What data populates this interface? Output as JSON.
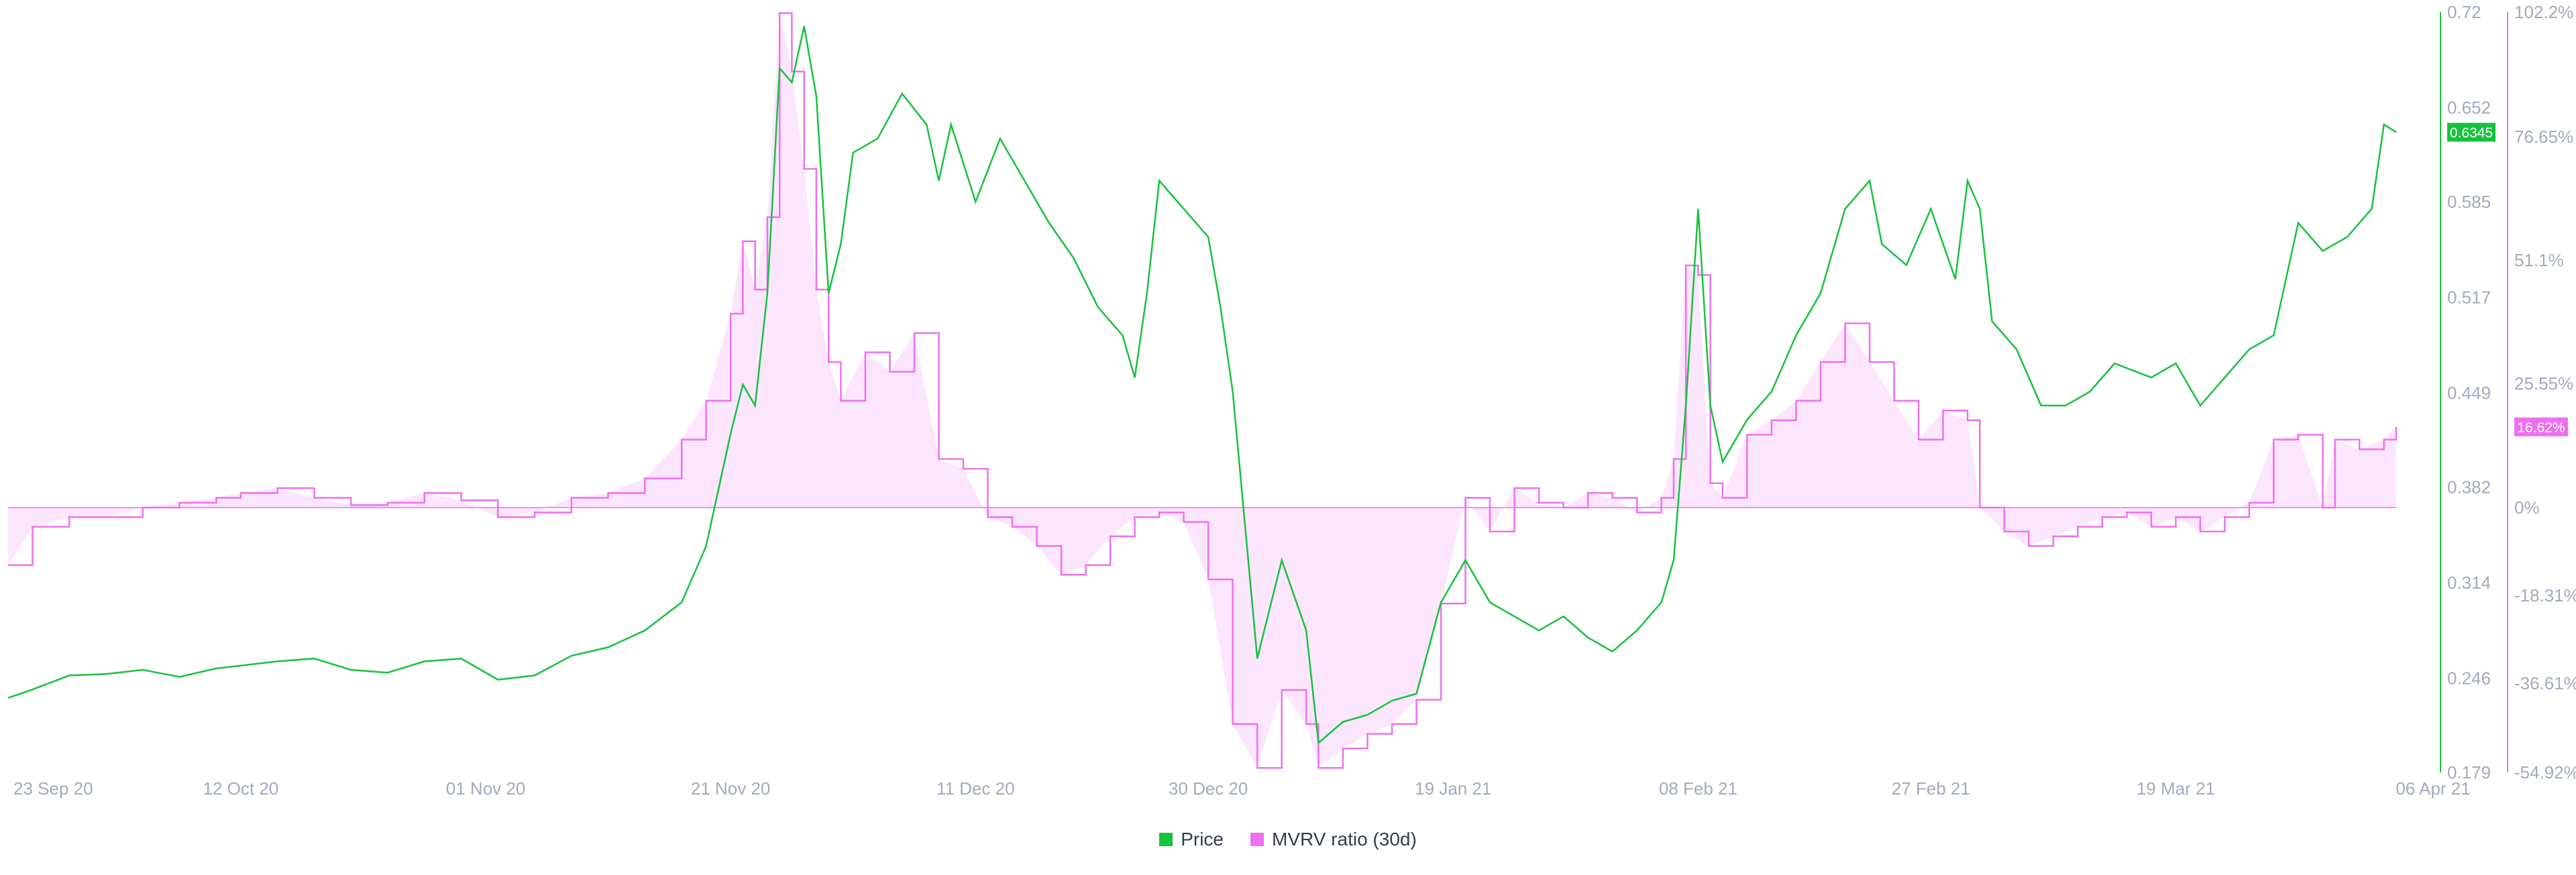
{
  "colors": {
    "price": "#16c23c",
    "mvrv": "#ef6ff0",
    "mvrv_fill": "#fce6fd",
    "axis_text": "#a3a9c0",
    "zero_line": "#ef6ff0"
  },
  "legend": {
    "price_label": "Price",
    "mvrv_label": "MVRV ratio (30d)"
  },
  "badges": {
    "price_value": "0.6345",
    "mvrv_value": "16.62%"
  },
  "chart_data": {
    "type": "line",
    "x_ticks": [
      "23 Sep 20",
      "12 Oct 20",
      "01 Nov 20",
      "21 Nov 20",
      "11 Dec 20",
      "30 Dec 20",
      "19 Jan 21",
      "08 Feb 21",
      "27 Feb 21",
      "19 Mar 21",
      "06 Apr 21"
    ],
    "x_range": [
      "2020-09-23",
      "2021-04-06"
    ],
    "y_left": {
      "label": "",
      "ticks": [
        "0.72",
        "0.652",
        "0.585",
        "0.517",
        "0.449",
        "0.382",
        "0.314",
        "0.246",
        "0.179"
      ],
      "range": [
        0.179,
        0.72
      ]
    },
    "y_right": {
      "label": "",
      "ticks": [
        "102.2%",
        "76.65%",
        "51.1%",
        "25.55%",
        "0%",
        "-18.31%",
        "-36.61%",
        "-54.92%"
      ]
    },
    "series": [
      {
        "name": "Price",
        "axis": "left",
        "points": [
          [
            "2020-09-23",
            0.232
          ],
          [
            "2020-09-25",
            0.238
          ],
          [
            "2020-09-28",
            0.248
          ],
          [
            "2020-10-01",
            0.249
          ],
          [
            "2020-10-04",
            0.252
          ],
          [
            "2020-10-07",
            0.247
          ],
          [
            "2020-10-10",
            0.253
          ],
          [
            "2020-10-12",
            0.255
          ],
          [
            "2020-10-15",
            0.258
          ],
          [
            "2020-10-18",
            0.26
          ],
          [
            "2020-10-21",
            0.252
          ],
          [
            "2020-10-24",
            0.25
          ],
          [
            "2020-10-27",
            0.258
          ],
          [
            "2020-10-30",
            0.26
          ],
          [
            "2020-11-02",
            0.245
          ],
          [
            "2020-11-05",
            0.248
          ],
          [
            "2020-11-08",
            0.262
          ],
          [
            "2020-11-11",
            0.268
          ],
          [
            "2020-11-14",
            0.28
          ],
          [
            "2020-11-17",
            0.3
          ],
          [
            "2020-11-19",
            0.34
          ],
          [
            "2020-11-21",
            0.42
          ],
          [
            "2020-11-22",
            0.455
          ],
          [
            "2020-11-23",
            0.44
          ],
          [
            "2020-11-24",
            0.52
          ],
          [
            "2020-11-25",
            0.68
          ],
          [
            "2020-11-26",
            0.67
          ],
          [
            "2020-11-27",
            0.71
          ],
          [
            "2020-11-28",
            0.66
          ],
          [
            "2020-11-29",
            0.52
          ],
          [
            "2020-11-30",
            0.555
          ],
          [
            "2020-12-01",
            0.62
          ],
          [
            "2020-12-03",
            0.63
          ],
          [
            "2020-12-05",
            0.662
          ],
          [
            "2020-12-07",
            0.64
          ],
          [
            "2020-12-08",
            0.6
          ],
          [
            "2020-12-09",
            0.64
          ],
          [
            "2020-12-11",
            0.585
          ],
          [
            "2020-12-13",
            0.63
          ],
          [
            "2020-12-15",
            0.6
          ],
          [
            "2020-12-17",
            0.57
          ],
          [
            "2020-12-19",
            0.545
          ],
          [
            "2020-12-21",
            0.51
          ],
          [
            "2020-12-23",
            0.49
          ],
          [
            "2020-12-24",
            0.46
          ],
          [
            "2020-12-25",
            0.52
          ],
          [
            "2020-12-26",
            0.6
          ],
          [
            "2020-12-28",
            0.58
          ],
          [
            "2020-12-30",
            0.56
          ],
          [
            "2020-12-31",
            0.51
          ],
          [
            "2021-01-01",
            0.45
          ],
          [
            "2021-01-03",
            0.26
          ],
          [
            "2021-01-05",
            0.33
          ],
          [
            "2021-01-07",
            0.28
          ],
          [
            "2021-01-08",
            0.2
          ],
          [
            "2021-01-10",
            0.215
          ],
          [
            "2021-01-12",
            0.22
          ],
          [
            "2021-01-14",
            0.23
          ],
          [
            "2021-01-16",
            0.235
          ],
          [
            "2021-01-18",
            0.3
          ],
          [
            "2021-01-20",
            0.33
          ],
          [
            "2021-01-22",
            0.3
          ],
          [
            "2021-01-24",
            0.29
          ],
          [
            "2021-01-26",
            0.28
          ],
          [
            "2021-01-28",
            0.29
          ],
          [
            "2021-01-30",
            0.275
          ],
          [
            "2021-02-01",
            0.265
          ],
          [
            "2021-02-03",
            0.28
          ],
          [
            "2021-02-05",
            0.3
          ],
          [
            "2021-02-06",
            0.33
          ],
          [
            "2021-02-07",
            0.44
          ],
          [
            "2021-02-08",
            0.58
          ],
          [
            "2021-02-09",
            0.44
          ],
          [
            "2021-02-10",
            0.4
          ],
          [
            "2021-02-12",
            0.43
          ],
          [
            "2021-02-14",
            0.45
          ],
          [
            "2021-02-16",
            0.49
          ],
          [
            "2021-02-18",
            0.52
          ],
          [
            "2021-02-20",
            0.58
          ],
          [
            "2021-02-22",
            0.6
          ],
          [
            "2021-02-23",
            0.555
          ],
          [
            "2021-02-25",
            0.54
          ],
          [
            "2021-02-27",
            0.58
          ],
          [
            "2021-03-01",
            0.53
          ],
          [
            "2021-03-02",
            0.6
          ],
          [
            "2021-03-03",
            0.58
          ],
          [
            "2021-03-04",
            0.5
          ],
          [
            "2021-03-06",
            0.48
          ],
          [
            "2021-03-08",
            0.44
          ],
          [
            "2021-03-10",
            0.44
          ],
          [
            "2021-03-12",
            0.45
          ],
          [
            "2021-03-14",
            0.47
          ],
          [
            "2021-03-17",
            0.46
          ],
          [
            "2021-03-19",
            0.47
          ],
          [
            "2021-03-21",
            0.44
          ],
          [
            "2021-03-23",
            0.46
          ],
          [
            "2021-03-25",
            0.48
          ],
          [
            "2021-03-27",
            0.49
          ],
          [
            "2021-03-29",
            0.57
          ],
          [
            "2021-03-31",
            0.55
          ],
          [
            "2021-04-02",
            0.56
          ],
          [
            "2021-04-03",
            0.57
          ],
          [
            "2021-04-04",
            0.58
          ],
          [
            "2021-04-05",
            0.64
          ],
          [
            "2021-04-06",
            0.6345
          ]
        ]
      },
      {
        "name": "MVRV ratio (30d)",
        "axis": "right",
        "points": [
          [
            "2020-09-23",
            -12.0
          ],
          [
            "2020-09-25",
            -4.0
          ],
          [
            "2020-09-28",
            -2.0
          ],
          [
            "2020-10-01",
            -2.0
          ],
          [
            "2020-10-04",
            0.0
          ],
          [
            "2020-10-07",
            1.0
          ],
          [
            "2020-10-10",
            2.0
          ],
          [
            "2020-10-12",
            3.0
          ],
          [
            "2020-10-15",
            4.0
          ],
          [
            "2020-10-18",
            2.0
          ],
          [
            "2020-10-21",
            0.5
          ],
          [
            "2020-10-24",
            1.0
          ],
          [
            "2020-10-27",
            3.0
          ],
          [
            "2020-10-30",
            1.5
          ],
          [
            "2020-11-02",
            -2.0
          ],
          [
            "2020-11-05",
            -1.0
          ],
          [
            "2020-11-08",
            2.0
          ],
          [
            "2020-11-11",
            3.0
          ],
          [
            "2020-11-14",
            6.0
          ],
          [
            "2020-11-17",
            14.0
          ],
          [
            "2020-11-19",
            22.0
          ],
          [
            "2020-11-21",
            40.0
          ],
          [
            "2020-11-22",
            55.0
          ],
          [
            "2020-11-23",
            45.0
          ],
          [
            "2020-11-24",
            60.0
          ],
          [
            "2020-11-25",
            102.0
          ],
          [
            "2020-11-26",
            90.0
          ],
          [
            "2020-11-27",
            70.0
          ],
          [
            "2020-11-28",
            45.0
          ],
          [
            "2020-11-29",
            30.0
          ],
          [
            "2020-11-30",
            22.0
          ],
          [
            "2020-12-02",
            32.0
          ],
          [
            "2020-12-04",
            28.0
          ],
          [
            "2020-12-06",
            36.0
          ],
          [
            "2020-12-08",
            10.0
          ],
          [
            "2020-12-10",
            8.0
          ],
          [
            "2020-12-12",
            -2.0
          ],
          [
            "2020-12-14",
            -4.0
          ],
          [
            "2020-12-16",
            -8.0
          ],
          [
            "2020-12-18",
            -14.0
          ],
          [
            "2020-12-20",
            -12.0
          ],
          [
            "2020-12-22",
            -6.0
          ],
          [
            "2020-12-24",
            -2.0
          ],
          [
            "2020-12-26",
            -1.0
          ],
          [
            "2020-12-28",
            -3.0
          ],
          [
            "2020-12-30",
            -15.0
          ],
          [
            "2021-01-01",
            -45.0
          ],
          [
            "2021-01-03",
            -54.0
          ],
          [
            "2021-01-05",
            -38.0
          ],
          [
            "2021-01-07",
            -45.0
          ],
          [
            "2021-01-08",
            -54.0
          ],
          [
            "2021-01-10",
            -50.0
          ],
          [
            "2021-01-12",
            -47.0
          ],
          [
            "2021-01-14",
            -45.0
          ],
          [
            "2021-01-16",
            -40.0
          ],
          [
            "2021-01-18",
            -20.0
          ],
          [
            "2021-01-20",
            2.0
          ],
          [
            "2021-01-22",
            -5.0
          ],
          [
            "2021-01-24",
            4.0
          ],
          [
            "2021-01-26",
            1.0
          ],
          [
            "2021-01-28",
            0.0
          ],
          [
            "2021-01-30",
            3.0
          ],
          [
            "2021-02-01",
            2.0
          ],
          [
            "2021-02-03",
            -1.0
          ],
          [
            "2021-02-05",
            2.0
          ],
          [
            "2021-02-06",
            10.0
          ],
          [
            "2021-02-07",
            50.0
          ],
          [
            "2021-02-08",
            48.0
          ],
          [
            "2021-02-09",
            5.0
          ],
          [
            "2021-02-10",
            2.0
          ],
          [
            "2021-02-12",
            15.0
          ],
          [
            "2021-02-14",
            18.0
          ],
          [
            "2021-02-16",
            22.0
          ],
          [
            "2021-02-18",
            30.0
          ],
          [
            "2021-02-20",
            38.0
          ],
          [
            "2021-02-22",
            30.0
          ],
          [
            "2021-02-24",
            22.0
          ],
          [
            "2021-02-26",
            14.0
          ],
          [
            "2021-02-28",
            20.0
          ],
          [
            "2021-03-02",
            18.0
          ],
          [
            "2021-03-03",
            0.0
          ],
          [
            "2021-03-05",
            -5.0
          ],
          [
            "2021-03-07",
            -8.0
          ],
          [
            "2021-03-09",
            -6.0
          ],
          [
            "2021-03-11",
            -4.0
          ],
          [
            "2021-03-13",
            -2.0
          ],
          [
            "2021-03-15",
            -1.0
          ],
          [
            "2021-03-17",
            -4.0
          ],
          [
            "2021-03-19",
            -2.0
          ],
          [
            "2021-03-21",
            -5.0
          ],
          [
            "2021-03-23",
            -2.0
          ],
          [
            "2021-03-25",
            1.0
          ],
          [
            "2021-03-27",
            14.0
          ],
          [
            "2021-03-29",
            15.0
          ],
          [
            "2021-03-31",
            0.0
          ],
          [
            "2021-04-01",
            14.0
          ],
          [
            "2021-04-03",
            12.0
          ],
          [
            "2021-04-05",
            14.0
          ],
          [
            "2021-04-06",
            16.62
          ]
        ]
      }
    ]
  }
}
